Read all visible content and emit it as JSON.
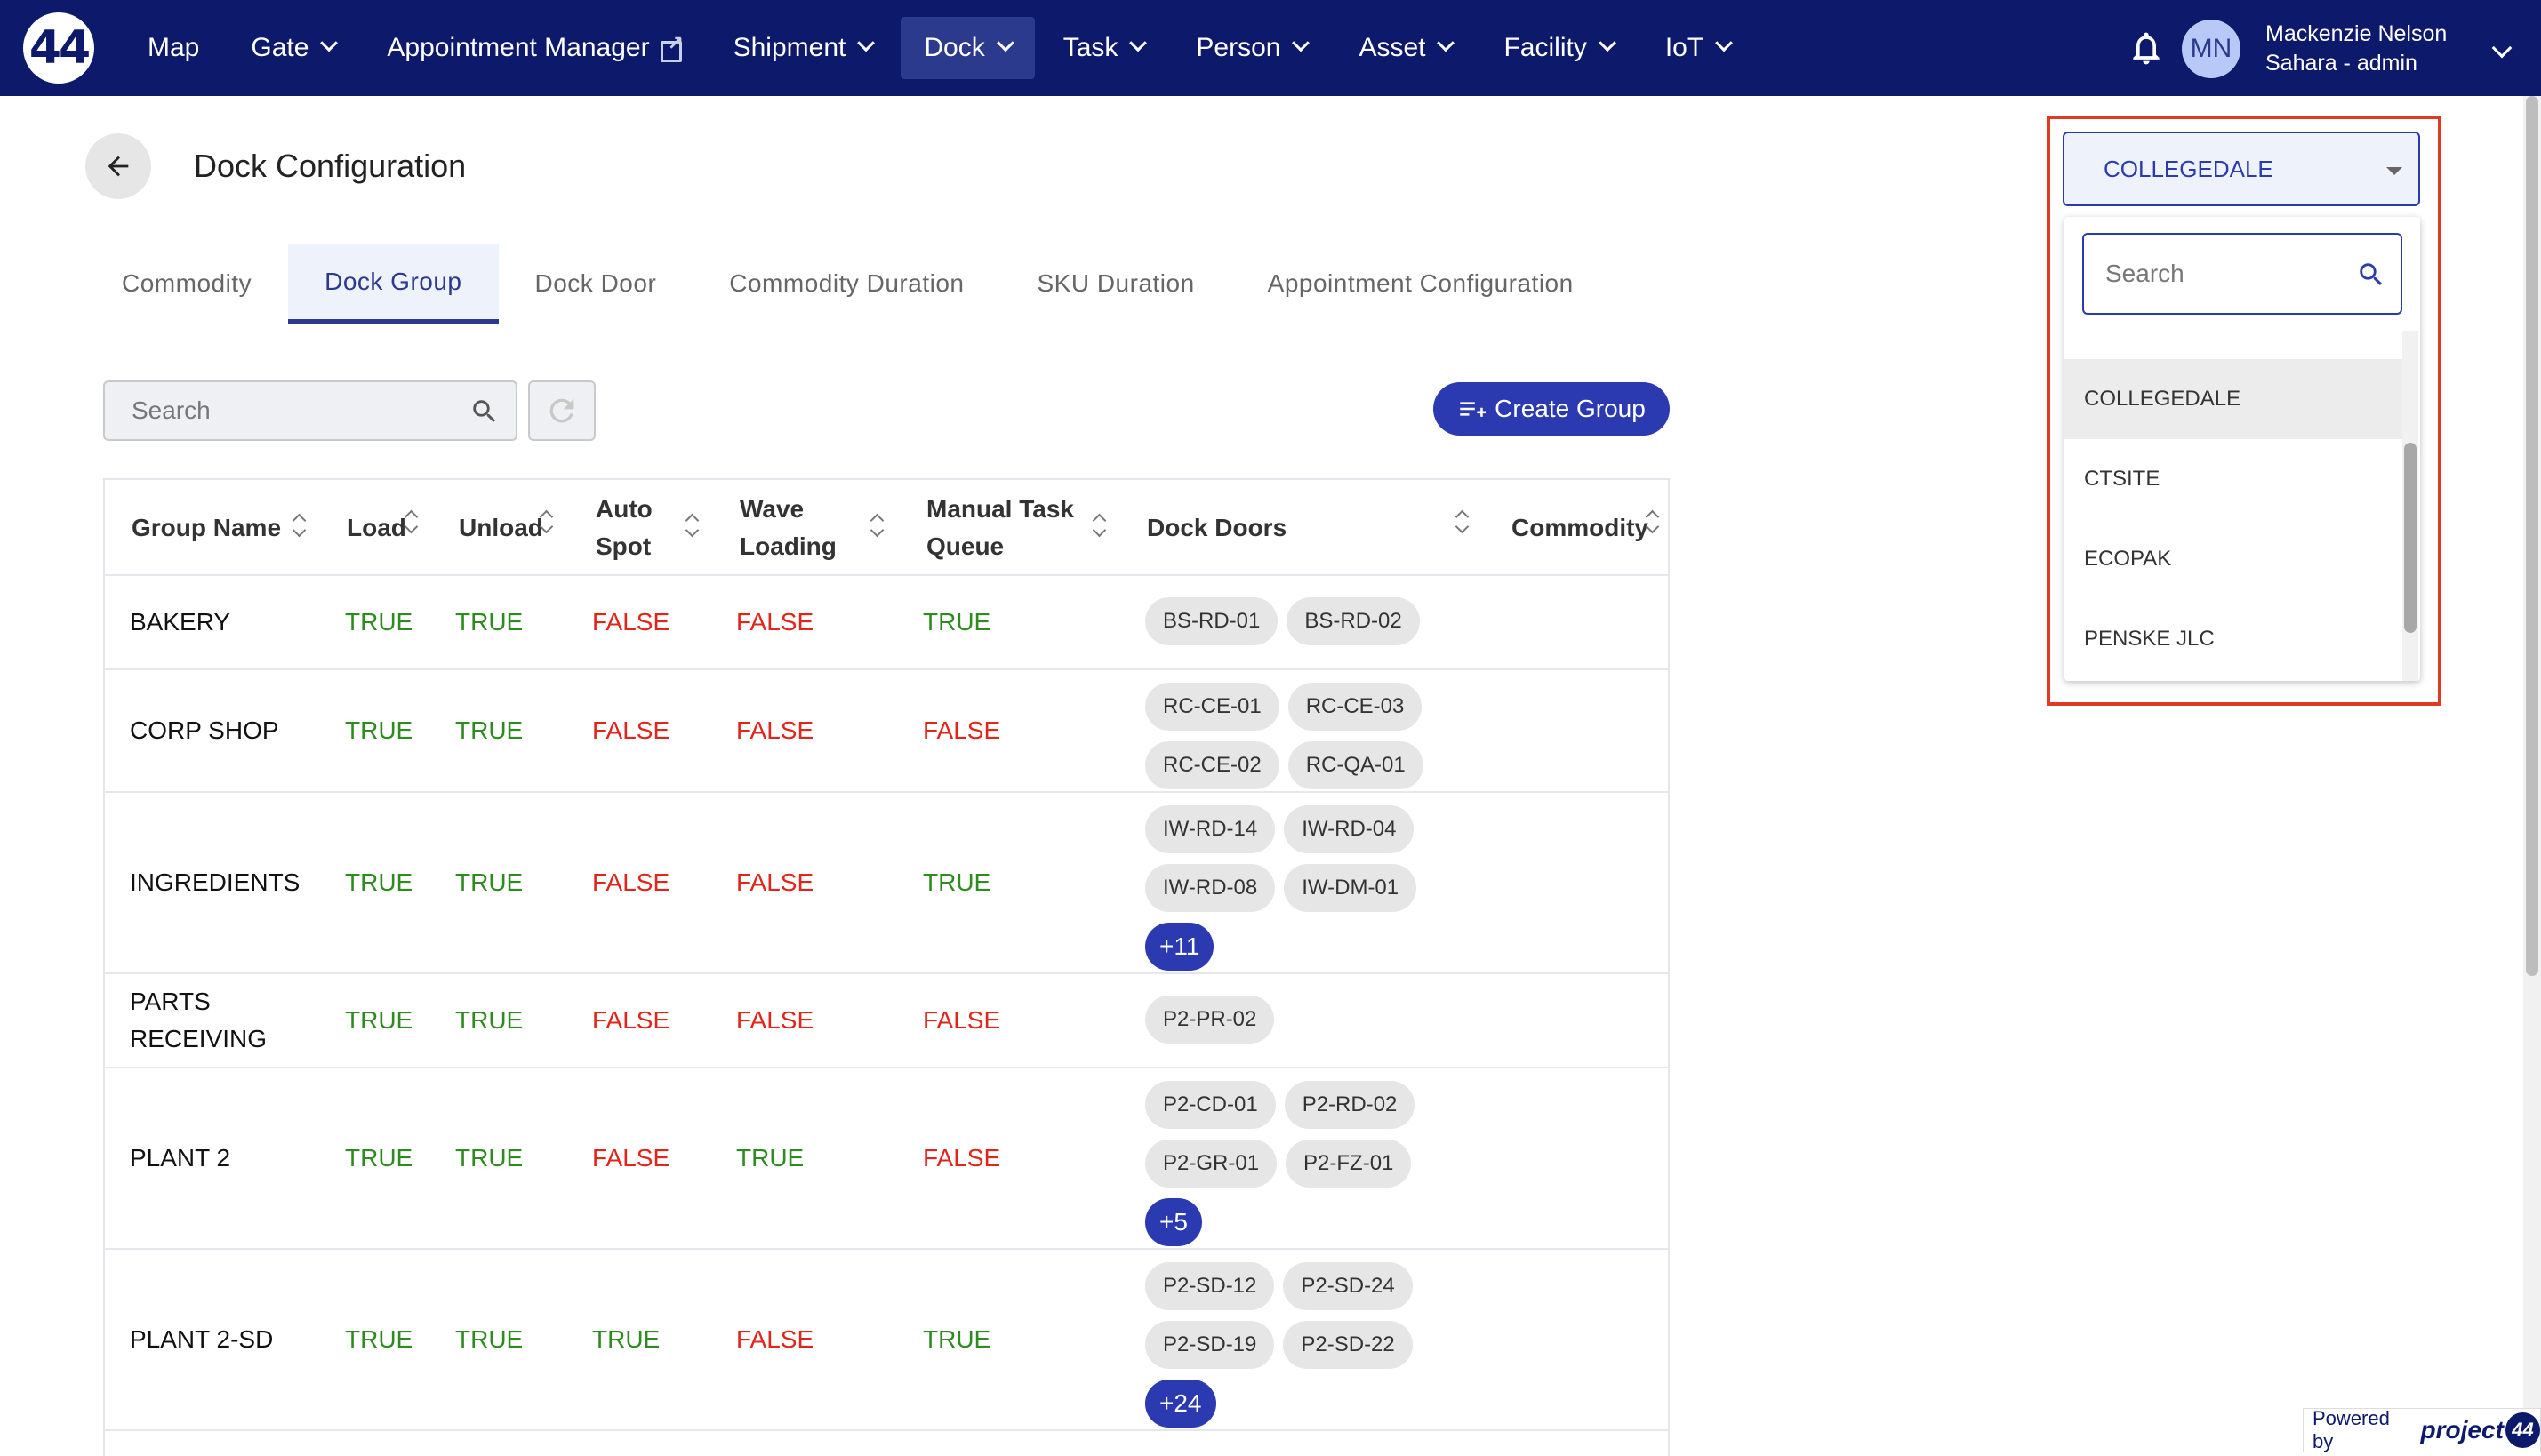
{
  "nav": {
    "logo": "44",
    "items": [
      {
        "label": "Map",
        "chevron": false,
        "external": false,
        "active": false
      },
      {
        "label": "Gate",
        "chevron": true,
        "external": false,
        "active": false
      },
      {
        "label": "Appointment Manager",
        "chevron": false,
        "external": true,
        "active": false
      },
      {
        "label": "Shipment",
        "chevron": true,
        "external": false,
        "active": false
      },
      {
        "label": "Dock",
        "chevron": true,
        "external": false,
        "active": true
      },
      {
        "label": "Task",
        "chevron": true,
        "external": false,
        "active": false
      },
      {
        "label": "Person",
        "chevron": true,
        "external": false,
        "active": false
      },
      {
        "label": "Asset",
        "chevron": true,
        "external": false,
        "active": false
      },
      {
        "label": "Facility",
        "chevron": true,
        "external": false,
        "active": false
      },
      {
        "label": "IoT",
        "chevron": true,
        "external": false,
        "active": false
      }
    ],
    "user": {
      "initials": "MN",
      "name": "Mackenzie Nelson",
      "role": "Sahara - admin"
    }
  },
  "page": {
    "title": "Dock Configuration"
  },
  "tabs": [
    {
      "label": "Commodity",
      "active": false
    },
    {
      "label": "Dock Group",
      "active": true
    },
    {
      "label": "Dock Door",
      "active": false
    },
    {
      "label": "Commodity Duration",
      "active": false
    },
    {
      "label": "SKU Duration",
      "active": false
    },
    {
      "label": "Appointment Configuration",
      "active": false
    }
  ],
  "toolbar": {
    "search_placeholder": "Search",
    "create_label": "Create Group"
  },
  "table": {
    "headers": {
      "group_name": "Group Name",
      "load": "Load",
      "unload": "Unload",
      "auto_spot_1": "Auto",
      "auto_spot_2": "Spot",
      "wave_1": "Wave",
      "wave_2": "Loading",
      "manual_1": "Manual Task",
      "manual_2": "Queue",
      "dock_doors": "Dock Doors",
      "commodity": "Commodity"
    },
    "rows": [
      {
        "name": [
          "BAKERY"
        ],
        "load": "TRUE",
        "unload": "TRUE",
        "auto_spot": "FALSE",
        "wave": "FALSE",
        "manual": "TRUE",
        "doors": [
          "BS-RD-01",
          "BS-RD-02"
        ],
        "more": ""
      },
      {
        "name": [
          "CORP SHOP"
        ],
        "load": "TRUE",
        "unload": "TRUE",
        "auto_spot": "FALSE",
        "wave": "FALSE",
        "manual": "FALSE",
        "doors": [
          "RC-CE-01",
          "RC-CE-03",
          "RC-CE-02",
          "RC-QA-01"
        ],
        "more": ""
      },
      {
        "name": [
          "INGREDIENTS"
        ],
        "load": "TRUE",
        "unload": "TRUE",
        "auto_spot": "FALSE",
        "wave": "FALSE",
        "manual": "TRUE",
        "doors": [
          "IW-RD-14",
          "IW-RD-04",
          "IW-RD-08",
          "IW-DM-01"
        ],
        "more": "+11"
      },
      {
        "name": [
          "PARTS",
          "RECEIVING"
        ],
        "load": "TRUE",
        "unload": "TRUE",
        "auto_spot": "FALSE",
        "wave": "FALSE",
        "manual": "FALSE",
        "doors": [
          "P2-PR-02"
        ],
        "more": ""
      },
      {
        "name": [
          "PLANT 2"
        ],
        "load": "TRUE",
        "unload": "TRUE",
        "auto_spot": "FALSE",
        "wave": "TRUE",
        "manual": "FALSE",
        "doors": [
          "P2-CD-01",
          "P2-RD-02",
          "P2-GR-01",
          "P2-FZ-01"
        ],
        "more": "+5"
      },
      {
        "name": [
          "PLANT 2-SD"
        ],
        "load": "TRUE",
        "unload": "TRUE",
        "auto_spot": "TRUE",
        "wave": "FALSE",
        "manual": "TRUE",
        "doors": [
          "P2-SD-12",
          "P2-SD-24",
          "P2-SD-19",
          "P2-SD-22"
        ],
        "more": "+24"
      }
    ]
  },
  "facility": {
    "selected": "COLLEGEDALE",
    "search_placeholder": "Search",
    "options": [
      "COLLEGEDALE",
      "CTSITE",
      "ECOPAK",
      "PENSKE JLC"
    ]
  },
  "footer": {
    "powered_by": "Powered by",
    "brand": "project",
    "brand_badge": "44"
  },
  "colors": {
    "nav_bg": "#0d1a6b",
    "accent": "#2b3ab0",
    "true": "#2e8b1f",
    "false": "#e0251b",
    "highlight": "#e03a22"
  }
}
